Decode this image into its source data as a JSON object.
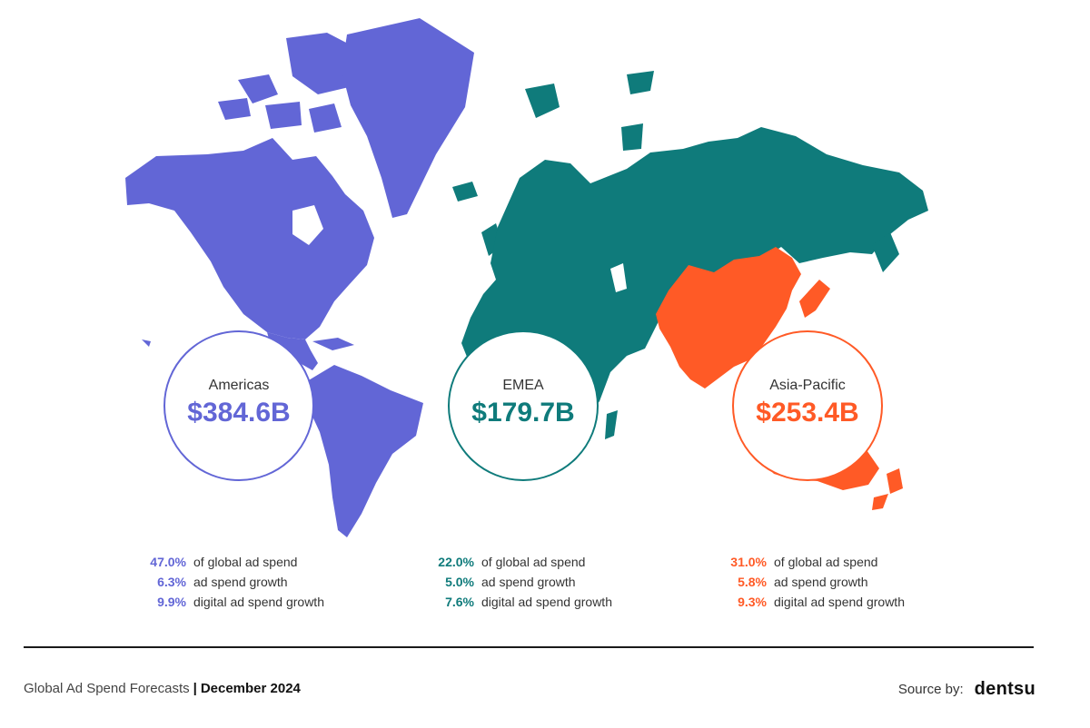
{
  "colors": {
    "americas": "#6266d6",
    "emea": "#0f7b7b",
    "apac": "#ff5a26",
    "text": "#333333"
  },
  "regions": [
    {
      "key": "americas",
      "name": "Americas",
      "amount": "$384.6B",
      "stats": [
        {
          "value": "47.0%",
          "label": "of global ad spend"
        },
        {
          "value": "6.3%",
          "label": "ad spend growth"
        },
        {
          "value": "9.9%",
          "label": "digital ad spend growth"
        }
      ]
    },
    {
      "key": "emea",
      "name": "EMEA",
      "amount": "$179.7B",
      "stats": [
        {
          "value": "22.0%",
          "label": "of global ad spend"
        },
        {
          "value": "5.0%",
          "label": "ad spend growth"
        },
        {
          "value": "7.6%",
          "label": "digital ad spend growth"
        }
      ]
    },
    {
      "key": "apac",
      "name": "Asia-Pacific",
      "amount": "$253.4B",
      "stats": [
        {
          "value": "31.0%",
          "label": "of global ad spend"
        },
        {
          "value": "5.8%",
          "label": "ad spend growth"
        },
        {
          "value": "9.3%",
          "label": "digital ad spend growth"
        }
      ]
    }
  ],
  "footer": {
    "title": "Global Ad Spend Forecasts",
    "separator": "|",
    "date": "December 2024",
    "source_label": "Source by:",
    "source_logo": "dentsu"
  }
}
